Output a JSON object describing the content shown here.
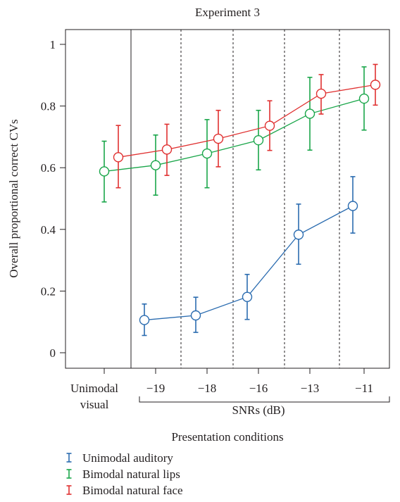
{
  "chart_data": {
    "type": "line",
    "title": "Experiment 3",
    "ylabel": "Overall proportional correct CVs",
    "xlabel": "Presentation conditions",
    "ylim": [
      0,
      1
    ],
    "yticks": [
      0,
      0.2,
      0.4,
      0.6,
      0.8,
      1
    ],
    "ytick_labels": [
      "0",
      "0.2",
      "0.4",
      "0.6",
      "0.8",
      "1"
    ],
    "categories": [
      "Unimodal visual",
      "−19",
      "−18",
      "−16",
      "−13",
      "−11"
    ],
    "category_label_lines": {
      "unimodal": [
        "Unimodal",
        "visual"
      ]
    },
    "bracket_label": "SNRs (dB)",
    "grid": false,
    "legend_position": "bottom-left",
    "series": [
      {
        "name": "Unimodal auditory",
        "color": "#2b6cb0",
        "points": [
          {
            "cat": 1,
            "y": 0.106,
            "lo": 0.056,
            "hi": 0.158
          },
          {
            "cat": 2,
            "y": 0.121,
            "lo": 0.066,
            "hi": 0.18
          },
          {
            "cat": 3,
            "y": 0.181,
            "lo": 0.108,
            "hi": 0.254
          },
          {
            "cat": 4,
            "y": 0.383,
            "lo": 0.287,
            "hi": 0.482
          },
          {
            "cat": 5,
            "y": 0.476,
            "lo": 0.388,
            "hi": 0.571
          }
        ]
      },
      {
        "name": "Bimodal natural lips",
        "color": "#1aa64a",
        "points": [
          {
            "cat": 0,
            "y": 0.588,
            "lo": 0.489,
            "hi": 0.686
          },
          {
            "cat": 1,
            "y": 0.608,
            "lo": 0.511,
            "hi": 0.706
          },
          {
            "cat": 2,
            "y": 0.646,
            "lo": 0.535,
            "hi": 0.756
          },
          {
            "cat": 3,
            "y": 0.689,
            "lo": 0.593,
            "hi": 0.786
          },
          {
            "cat": 4,
            "y": 0.775,
            "lo": 0.657,
            "hi": 0.893
          },
          {
            "cat": 5,
            "y": 0.824,
            "lo": 0.722,
            "hi": 0.927
          }
        ]
      },
      {
        "name": "Bimodal natural face",
        "color": "#e03131",
        "points": [
          {
            "cat": 0,
            "y": 0.634,
            "lo": 0.535,
            "hi": 0.737
          },
          {
            "cat": 1,
            "y": 0.659,
            "lo": 0.575,
            "hi": 0.741
          },
          {
            "cat": 2,
            "y": 0.694,
            "lo": 0.603,
            "hi": 0.786
          },
          {
            "cat": 3,
            "y": 0.736,
            "lo": 0.656,
            "hi": 0.817
          },
          {
            "cat": 4,
            "y": 0.84,
            "lo": 0.774,
            "hi": 0.902
          },
          {
            "cat": 5,
            "y": 0.869,
            "lo": 0.803,
            "hi": 0.935
          }
        ]
      }
    ]
  }
}
